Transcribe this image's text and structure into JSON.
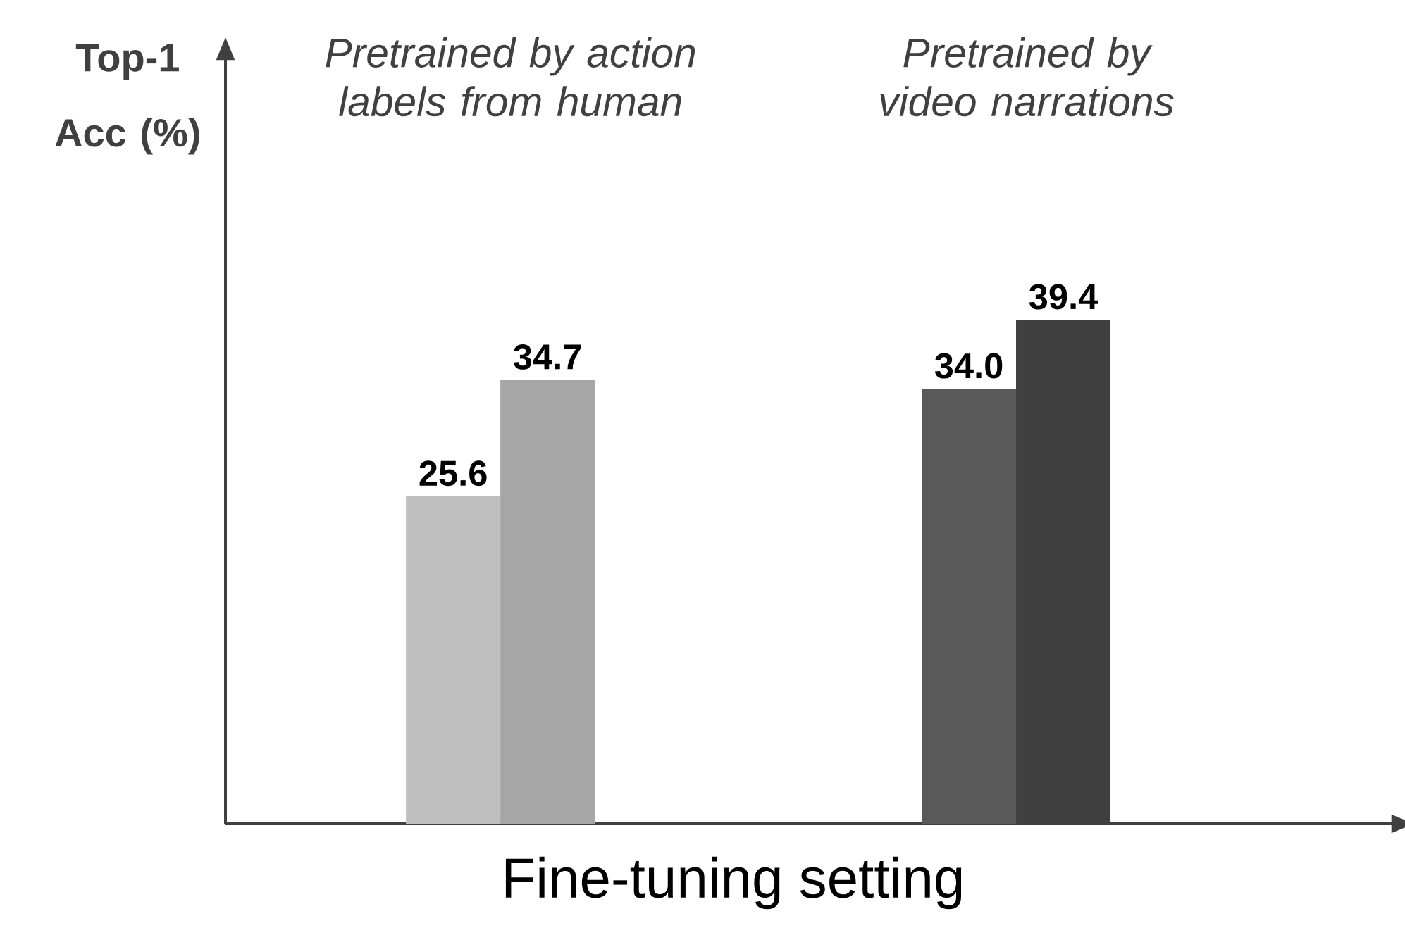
{
  "chart_data": {
    "type": "bar",
    "categories": [
      null,
      null
    ],
    "series": [
      {
        "colors": [
          "#bfbfbf",
          "#595959"
        ],
        "values": [
          25.6,
          34.0
        ],
        "value_labels": [
          "25.6",
          "34.0"
        ]
      },
      {
        "colors": [
          "#a6a6a6",
          "#404040"
        ],
        "values": [
          34.7,
          39.4
        ],
        "value_labels": [
          "34.7",
          "39.4"
        ]
      }
    ],
    "ylim": [
      0,
      60
    ],
    "xlabel": "Fine-tuning setting",
    "ylabel": "Top-1 Acc (%)",
    "annotations": [
      "Pretrained by action labels from human",
      "Pretrained by video narrations"
    ],
    "tick_labels": false
  }
}
